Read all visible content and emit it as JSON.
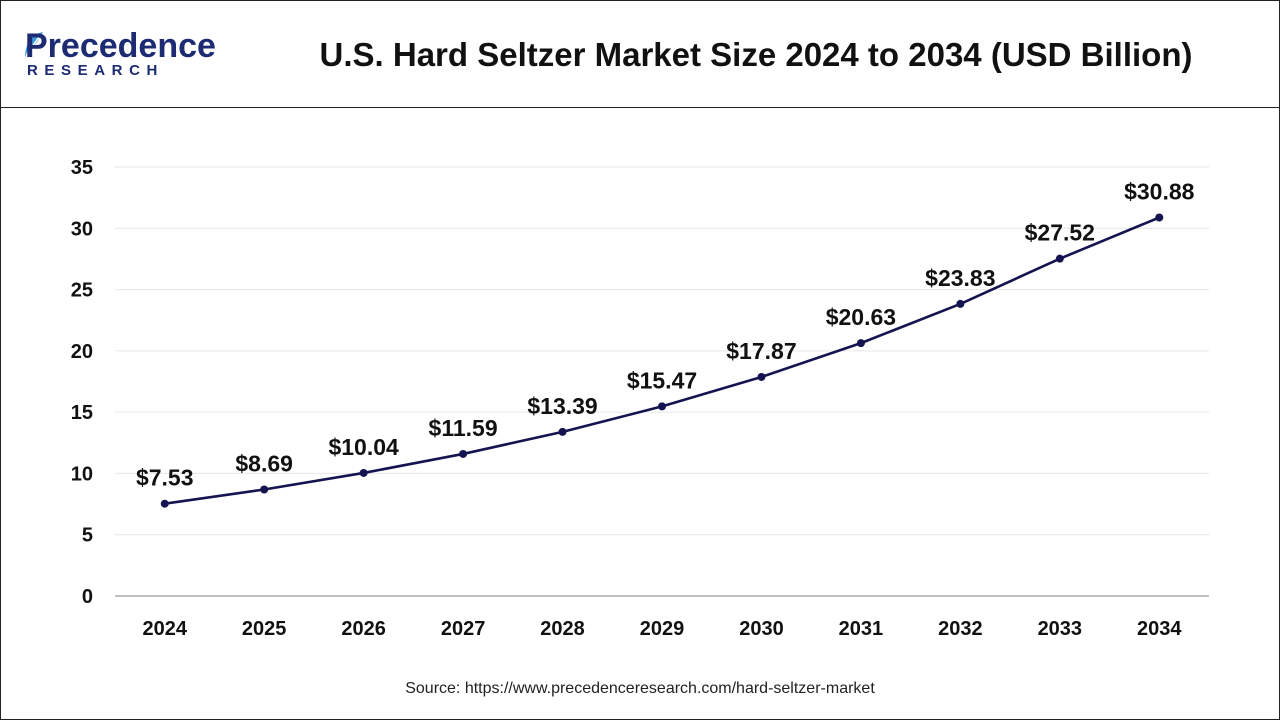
{
  "header": {
    "logo_main": "Precedence",
    "logo_sub": "RESEARCH",
    "title": "U.S. Hard Seltzer Market Size 2024 to 2034 (USD Billion)"
  },
  "source": "Source: https://www.precedenceresearch.com/hard-seltzer-market",
  "colors": {
    "line": "#141450",
    "marker": "#141450",
    "brand": "#1d2b73",
    "gridline": "#e6e6e6"
  },
  "chart_data": {
    "type": "line",
    "title": "U.S. Hard Seltzer Market Size 2024 to 2034 (USD Billion)",
    "categories": [
      "2024",
      "2025",
      "2026",
      "2027",
      "2028",
      "2029",
      "2030",
      "2031",
      "2032",
      "2033",
      "2034"
    ],
    "values": [
      7.53,
      8.69,
      10.04,
      11.59,
      13.39,
      15.47,
      17.87,
      20.63,
      23.83,
      27.52,
      30.88
    ],
    "data_labels": [
      "$7.53",
      "$8.69",
      "$10.04",
      "$11.59",
      "$13.39",
      "$15.47",
      "$17.87",
      "$20.63",
      "$23.83",
      "$27.52",
      "$30.88"
    ],
    "ylim": [
      0,
      35
    ],
    "yticks": [
      0,
      5,
      10,
      15,
      20,
      25,
      30,
      35
    ],
    "xlabel": "",
    "ylabel": "",
    "grid": true,
    "legend": "none"
  }
}
